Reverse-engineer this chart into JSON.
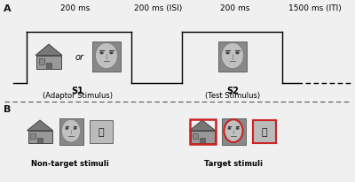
{
  "bg_color": "#f0f0f0",
  "panel_A_label": "A",
  "panel_B_label": "B",
  "timing_labels": [
    "200 ms",
    "200 ms (ISI)",
    "200 ms",
    "1500 ms (ITI)"
  ],
  "s1_label": "S1",
  "s1_sub": "(Adaptor Stimulus)",
  "s2_label": "S2",
  "s2_sub": "(Test Stimulus)",
  "or_text": "or",
  "non_target_label": "Non-target stimuli",
  "target_label": "Target stimuli",
  "face_bg": "#aaaaaa",
  "face_skin": "#cccccc",
  "house_body": "#999999",
  "house_roof": "#777777",
  "char_bg": "#bbbbbb",
  "char_color": "#111111",
  "red_color": "#cc2222",
  "line_color": "#222222",
  "dashed_color": "#555555",
  "label_color": "#111111"
}
